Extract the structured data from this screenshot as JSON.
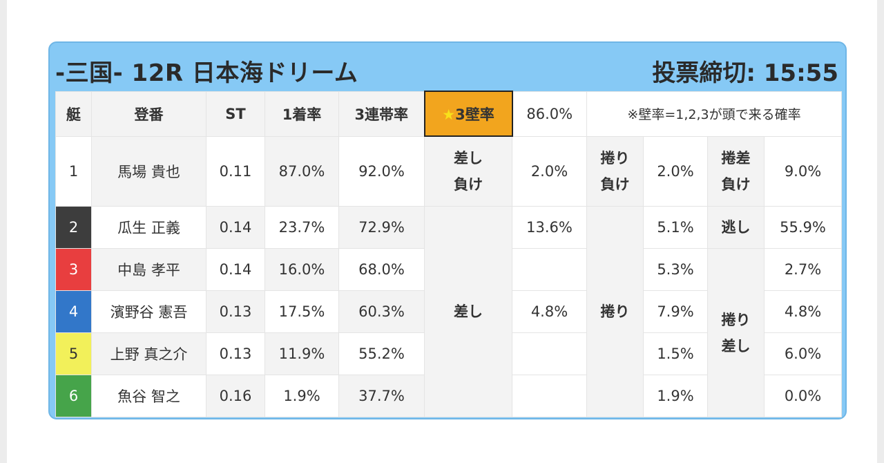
{
  "header": {
    "title": "-三国- 12R 日本海ドリーム",
    "deadline": "投票締切: 15:55"
  },
  "columns": {
    "boat": "艇",
    "racer": "登番",
    "st": "ST",
    "first_rate": "1着率",
    "top3_rate": "3連帯率",
    "wall_star": "★",
    "wall_label": "3壁率",
    "wall_value": "86.0%",
    "note": "※壁率=1,2,3が頭で来る確率"
  },
  "colors": {
    "card_bg": "#86c9f5",
    "highlight": "#f2a51e",
    "boat1": "#ffffff",
    "boat2": "#3d3d3d",
    "boat3": "#e83e3f",
    "boat4": "#3277c9",
    "boat5": "#f2f05a",
    "boat6": "#46a44a"
  },
  "rows": [
    {
      "boat": "1",
      "name": "馬場 貴也",
      "st": "0.11",
      "first": "87.0%",
      "top3": "92.0%"
    },
    {
      "boat": "2",
      "name": "瓜生 正義",
      "st": "0.14",
      "first": "23.7%",
      "top3": "72.9%"
    },
    {
      "boat": "3",
      "name": "中島 孝平",
      "st": "0.14",
      "first": "16.0%",
      "top3": "68.0%"
    },
    {
      "boat": "4",
      "name": "濱野谷 憲吾",
      "st": "0.13",
      "first": "17.5%",
      "top3": "60.3%"
    },
    {
      "boat": "5",
      "name": "上野 真之介",
      "st": "0.13",
      "first": "11.9%",
      "top3": "55.2%"
    },
    {
      "boat": "6",
      "name": "魚谷 智之",
      "st": "0.16",
      "first": "1.9%",
      "top3": "37.7%"
    }
  ],
  "patterns": {
    "sashi_make": {
      "label_line1": "差し",
      "label_line2": "負け",
      "value": "2.0%"
    },
    "makuri_make": {
      "label_line1": "捲り",
      "label_line2": "負け",
      "value": "2.0%"
    },
    "makurizashi_make": {
      "label_line1": "捲差",
      "label_line2": "負け",
      "value": "9.0%"
    },
    "sashi": {
      "label": "差し",
      "row2": "13.6%",
      "row4": "4.8%"
    },
    "makuri": {
      "label": "捲り",
      "row2": "5.1%",
      "row3": "5.3%",
      "row4": "7.9%",
      "row5": "1.5%",
      "row6": "1.9%"
    },
    "nige": {
      "label": "逃し",
      "value": "55.9%"
    },
    "makurizashi": {
      "label_line1": "捲り",
      "label_line2": "差し",
      "row3": "2.7%",
      "row4": "4.8%",
      "row5": "6.0%",
      "row6": "0.0%"
    }
  }
}
